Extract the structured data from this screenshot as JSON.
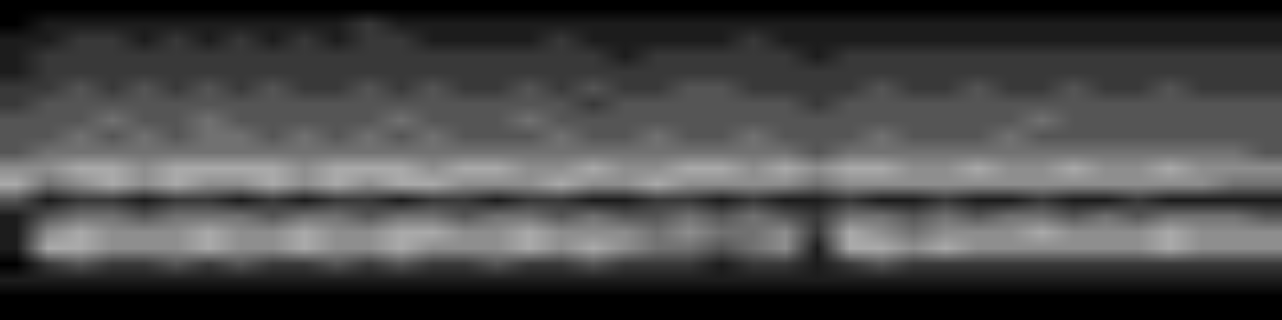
{
  "chart_data": {
    "type": "heatmap",
    "tick_labels": false,
    "color_range": [
      0,
      9
    ],
    "cells": [
      [
        0,
        0,
        0,
        0,
        0,
        0,
        0,
        0,
        0,
        0,
        0,
        0,
        0,
        0,
        0,
        0,
        0,
        0,
        0,
        0,
        0,
        0,
        0,
        0,
        0,
        0,
        0,
        0,
        0,
        0,
        0,
        0,
        0,
        0,
        0,
        0,
        0,
        0,
        0,
        0
      ],
      [
        0,
        1,
        1,
        1,
        1,
        1,
        1,
        1,
        1,
        1,
        1,
        2,
        1,
        1,
        1,
        1,
        1,
        1,
        1,
        1,
        1,
        1,
        1,
        1,
        1,
        1,
        1,
        1,
        1,
        1,
        1,
        1,
        1,
        1,
        1,
        1,
        1,
        1,
        1,
        1
      ],
      [
        1,
        1,
        2,
        2,
        1,
        2,
        1,
        2,
        1,
        2,
        1,
        2,
        2,
        1,
        1,
        1,
        1,
        2,
        1,
        1,
        1,
        1,
        1,
        2,
        1,
        1,
        1,
        1,
        1,
        1,
        1,
        1,
        1,
        1,
        1,
        1,
        1,
        1,
        1,
        1
      ],
      [
        1,
        2,
        2,
        2,
        2,
        2,
        2,
        2,
        2,
        2,
        2,
        2,
        2,
        2,
        2,
        2,
        2,
        2,
        2,
        1,
        2,
        2,
        2,
        2,
        2,
        1,
        2,
        2,
        2,
        2,
        2,
        2,
        2,
        2,
        2,
        2,
        2,
        2,
        2,
        2
      ],
      [
        1,
        2,
        2,
        2,
        2,
        2,
        2,
        2,
        2,
        2,
        2,
        2,
        2,
        2,
        2,
        2,
        2,
        2,
        2,
        2,
        2,
        2,
        2,
        2,
        2,
        2,
        2,
        2,
        2,
        2,
        2,
        2,
        2,
        2,
        2,
        2,
        2,
        2,
        2,
        2
      ],
      [
        2,
        2,
        3,
        2,
        3,
        2,
        3,
        2,
        3,
        2,
        2,
        3,
        2,
        3,
        2,
        2,
        3,
        2,
        3,
        2,
        2,
        3,
        3,
        2,
        2,
        2,
        2,
        3,
        2,
        2,
        3,
        2,
        2,
        3,
        2,
        2,
        3,
        2,
        2,
        2
      ],
      [
        2,
        3,
        3,
        3,
        3,
        3,
        3,
        3,
        3,
        3,
        3,
        3,
        3,
        3,
        3,
        3,
        3,
        3,
        2,
        3,
        3,
        3,
        3,
        3,
        3,
        2,
        3,
        3,
        3,
        3,
        3,
        3,
        3,
        3,
        3,
        3,
        3,
        3,
        3,
        3
      ],
      [
        3,
        3,
        3,
        4,
        3,
        3,
        4,
        3,
        3,
        3,
        3,
        3,
        4,
        3,
        3,
        3,
        4,
        3,
        3,
        3,
        3,
        3,
        3,
        3,
        3,
        3,
        3,
        3,
        3,
        3,
        3,
        3,
        4,
        3,
        3,
        3,
        3,
        3,
        3,
        3
      ],
      [
        3,
        3,
        4,
        3,
        4,
        3,
        4,
        4,
        3,
        4,
        3,
        4,
        3,
        4,
        3,
        3,
        3,
        4,
        3,
        3,
        4,
        3,
        3,
        4,
        3,
        3,
        3,
        4,
        3,
        3,
        3,
        4,
        3,
        3,
        3,
        3,
        3,
        3,
        3,
        3
      ],
      [
        3,
        4,
        4,
        4,
        4,
        4,
        4,
        4,
        4,
        4,
        4,
        4,
        4,
        4,
        4,
        4,
        4,
        4,
        4,
        4,
        4,
        4,
        4,
        4,
        4,
        3,
        4,
        4,
        4,
        4,
        4,
        4,
        4,
        4,
        4,
        4,
        4,
        4,
        4,
        3
      ],
      [
        5,
        5,
        6,
        6,
        5,
        6,
        6,
        6,
        6,
        5,
        6,
        6,
        6,
        5,
        6,
        6,
        5,
        5,
        6,
        5,
        5,
        6,
        6,
        5,
        6,
        5,
        6,
        6,
        5,
        5,
        6,
        5,
        5,
        6,
        5,
        5,
        6,
        5,
        5,
        5
      ],
      [
        6,
        4,
        5,
        6,
        5,
        6,
        5,
        5,
        6,
        5,
        6,
        5,
        6,
        6,
        5,
        5,
        5,
        6,
        5,
        5,
        6,
        5,
        5,
        5,
        5,
        4,
        5,
        5,
        5,
        5,
        5,
        5,
        5,
        5,
        5,
        5,
        5,
        5,
        4,
        4
      ],
      [
        3,
        1,
        2,
        2,
        1,
        2,
        2,
        1,
        2,
        1,
        2,
        2,
        1,
        2,
        2,
        1,
        2,
        2,
        1,
        1,
        2,
        2,
        1,
        2,
        1,
        1,
        2,
        1,
        1,
        2,
        1,
        1,
        2,
        1,
        1,
        2,
        1,
        1,
        1,
        1
      ],
      [
        1,
        3,
        4,
        4,
        3,
        4,
        4,
        4,
        3,
        4,
        4,
        3,
        4,
        4,
        3,
        4,
        4,
        3,
        4,
        3,
        3,
        4,
        3,
        4,
        3,
        2,
        4,
        4,
        3,
        4,
        3,
        4,
        4,
        3,
        4,
        3,
        4,
        4,
        4,
        3
      ],
      [
        1,
        5,
        6,
        5,
        5,
        5,
        6,
        5,
        5,
        6,
        5,
        5,
        6,
        6,
        5,
        5,
        6,
        5,
        5,
        5,
        4,
        5,
        4,
        4,
        5,
        2,
        6,
        5,
        4,
        5,
        5,
        5,
        6,
        5,
        5,
        5,
        6,
        5,
        5,
        5
      ],
      [
        1,
        6,
        6,
        5,
        5,
        5,
        6,
        5,
        5,
        6,
        5,
        5,
        6,
        5,
        5,
        5,
        6,
        5,
        6,
        5,
        4,
        4,
        3,
        4,
        5,
        1,
        6,
        6,
        5,
        6,
        5,
        5,
        5,
        5,
        5,
        5,
        6,
        5,
        5,
        5
      ],
      [
        0,
        2,
        3,
        2,
        2,
        3,
        2,
        3,
        2,
        2,
        3,
        2,
        3,
        2,
        2,
        3,
        2,
        2,
        3,
        2,
        2,
        2,
        1,
        2,
        2,
        1,
        2,
        3,
        2,
        2,
        2,
        2,
        2,
        2,
        2,
        2,
        2,
        2,
        2,
        2
      ],
      [
        1,
        1,
        1,
        1,
        1,
        1,
        1,
        1,
        1,
        1,
        1,
        1,
        1,
        1,
        1,
        1,
        1,
        1,
        1,
        1,
        1,
        1,
        1,
        1,
        1,
        1,
        1,
        1,
        1,
        1,
        1,
        1,
        1,
        1,
        1,
        1,
        1,
        1,
        1,
        1
      ],
      [
        0,
        0,
        0,
        0,
        0,
        0,
        0,
        0,
        0,
        0,
        0,
        0,
        0,
        0,
        0,
        0,
        0,
        0,
        0,
        0,
        0,
        0,
        0,
        0,
        0,
        0,
        0,
        0,
        0,
        0,
        0,
        0,
        0,
        0,
        0,
        0,
        0,
        0,
        0,
        0
      ],
      [
        0,
        0,
        0,
        0,
        0,
        0,
        0,
        0,
        0,
        0,
        0,
        0,
        0,
        0,
        0,
        0,
        0,
        0,
        0,
        0,
        0,
        0,
        0,
        0,
        0,
        0,
        0,
        0,
        0,
        0,
        0,
        0,
        0,
        0,
        0,
        0,
        0,
        0,
        0,
        0
      ]
    ]
  }
}
